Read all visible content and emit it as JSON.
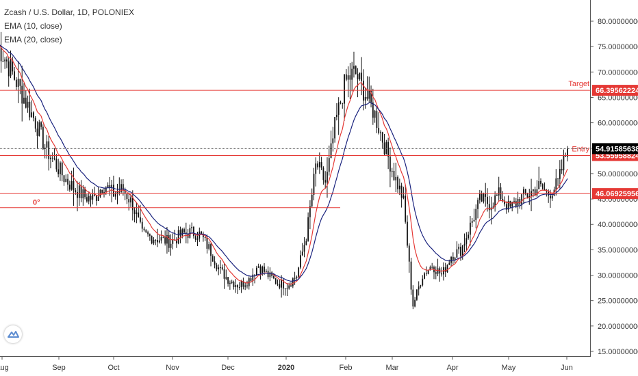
{
  "legend": {
    "title": "Zcash / U.S. Dollar, 1D, POLONIEX",
    "ema10": "EMA (10, close)",
    "ema20": "EMA (20, close)"
  },
  "colors": {
    "up": "#26a69a",
    "candle": "#111111",
    "ema10": "#e53935",
    "ema20": "#1a237e",
    "level": "#e53935",
    "last": "#000000"
  },
  "chart_data": {
    "type": "candlestick",
    "symbol": "Zcash / U.S. Dollar",
    "interval": "1D",
    "exchange": "POLONIEX",
    "ylim": [
      15,
      83
    ],
    "y_ticks": [
      {
        "value": 15,
        "label": "15.00000000"
      },
      {
        "value": 20,
        "label": "20.00000000"
      },
      {
        "value": 25,
        "label": "25.00000000"
      },
      {
        "value": 30,
        "label": "30.00000000"
      },
      {
        "value": 35,
        "label": "35.00000000"
      },
      {
        "value": 40,
        "label": "40.00000000"
      },
      {
        "value": 45,
        "label": "45.00000000"
      },
      {
        "value": 50,
        "label": "50.00000000"
      },
      {
        "value": 55,
        "label": "55.00000000"
      },
      {
        "value": 60,
        "label": "60.00000000"
      },
      {
        "value": 65,
        "label": "65.00000000"
      },
      {
        "value": 70,
        "label": "70.00000000"
      },
      {
        "value": 75,
        "label": "75.00000000"
      },
      {
        "value": 80,
        "label": "80.00000000"
      }
    ],
    "x_ticks": [
      {
        "label": "Aug",
        "bold": false
      },
      {
        "label": "Sep",
        "bold": false
      },
      {
        "label": "Oct",
        "bold": false
      },
      {
        "label": "Nov",
        "bold": false
      },
      {
        "label": "Dec",
        "bold": false
      },
      {
        "label": "2020",
        "bold": true
      },
      {
        "label": "Feb",
        "bold": false
      },
      {
        "label": "Mar",
        "bold": false
      },
      {
        "label": "Apr",
        "bold": false
      },
      {
        "label": "May",
        "bold": false
      },
      {
        "label": "Jun",
        "bold": false
      }
    ],
    "key_prices": [
      {
        "value": 75.5
      },
      {
        "value": 72
      },
      {
        "value": 68
      },
      {
        "value": 64
      },
      {
        "value": 60
      },
      {
        "value": 55
      },
      {
        "value": 52
      },
      {
        "value": 49
      },
      {
        "value": 47
      },
      {
        "value": 45.5
      },
      {
        "value": 45
      },
      {
        "value": 48
      },
      {
        "value": 46
      },
      {
        "value": 47
      },
      {
        "value": 44
      },
      {
        "value": 38
      },
      {
        "value": 37.5
      },
      {
        "value": 37
      },
      {
        "value": 36.5
      },
      {
        "value": 38
      },
      {
        "value": 38.5
      },
      {
        "value": 38
      },
      {
        "value": 35
      },
      {
        "value": 31
      },
      {
        "value": 29
      },
      {
        "value": 28
      },
      {
        "value": 29
      },
      {
        "value": 32
      },
      {
        "value": 30
      },
      {
        "value": 28.5
      },
      {
        "value": 28
      },
      {
        "value": 30
      },
      {
        "value": 38
      },
      {
        "value": 52
      },
      {
        "value": 48
      },
      {
        "value": 60
      },
      {
        "value": 68
      },
      {
        "value": 70
      },
      {
        "value": 66
      },
      {
        "value": 62
      },
      {
        "value": 56
      },
      {
        "value": 50
      },
      {
        "value": 45
      },
      {
        "value": 24
      },
      {
        "value": 30
      },
      {
        "value": 32
      },
      {
        "value": 30
      },
      {
        "value": 34
      },
      {
        "value": 35
      },
      {
        "value": 40
      },
      {
        "value": 45
      },
      {
        "value": 44
      },
      {
        "value": 46
      },
      {
        "value": 43
      },
      {
        "value": 45
      },
      {
        "value": 46
      },
      {
        "value": 47.5
      },
      {
        "value": 46
      },
      {
        "value": 48
      },
      {
        "value": 54.9
      }
    ],
    "price_levels": [
      {
        "name": "Target",
        "value": 66.39562224,
        "label": "66.39562224"
      },
      {
        "name": "Entry",
        "value": 53.55958824,
        "label": "53.55958824"
      },
      {
        "name": "",
        "value": 46.06925956,
        "label": "46.06925956"
      }
    ],
    "last_price": {
      "value": 54.91585638,
      "label": "54.91585638"
    },
    "fib_line": {
      "label": "0°",
      "value": 43.3
    }
  }
}
